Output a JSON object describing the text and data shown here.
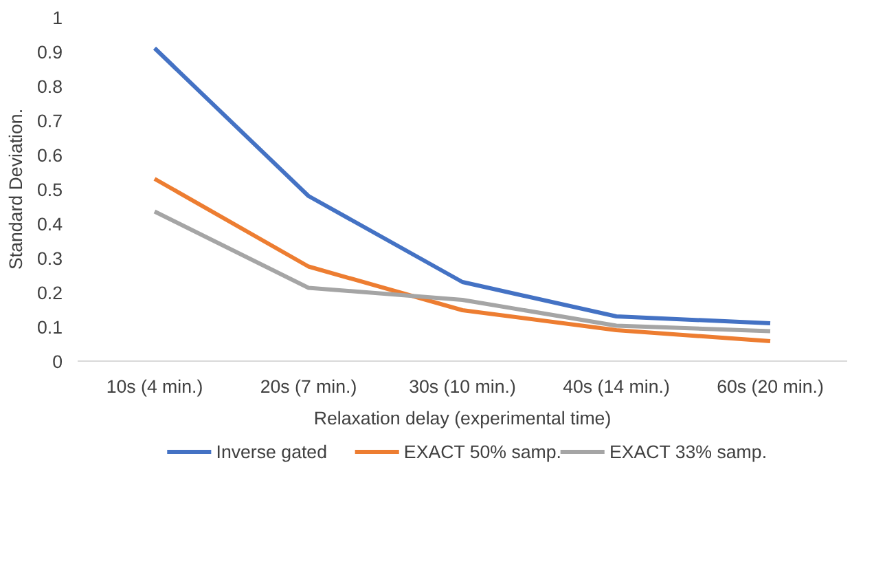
{
  "chart_data": {
    "type": "line",
    "xlabel": "Relaxation delay (experimental time)",
    "ylabel": "Standard Deviation.",
    "categories": [
      "10s (4 min.)",
      "20s (7 min.)",
      "30s (10 min.)",
      "40s (14 min.)",
      "60s (20 min.)"
    ],
    "series": [
      {
        "name": "Inverse gated",
        "color": "#4472c4",
        "values": [
          0.91,
          0.48,
          0.23,
          0.13,
          0.11
        ]
      },
      {
        "name": "EXACT 50% samp.",
        "color": "#ed7d31",
        "values": [
          0.53,
          0.275,
          0.148,
          0.09,
          0.058
        ]
      },
      {
        "name": "EXACT 33% samp.",
        "color": "#a5a5a5",
        "values": [
          0.435,
          0.213,
          0.178,
          0.103,
          0.087
        ]
      }
    ],
    "ylim": [
      0,
      1
    ],
    "yticks": [
      0,
      0.1,
      0.2,
      0.3,
      0.4,
      0.5,
      0.6,
      0.7,
      0.8,
      0.9,
      1
    ],
    "grid": false,
    "legend": "bottom",
    "marker": "none",
    "line_style": "solid"
  }
}
